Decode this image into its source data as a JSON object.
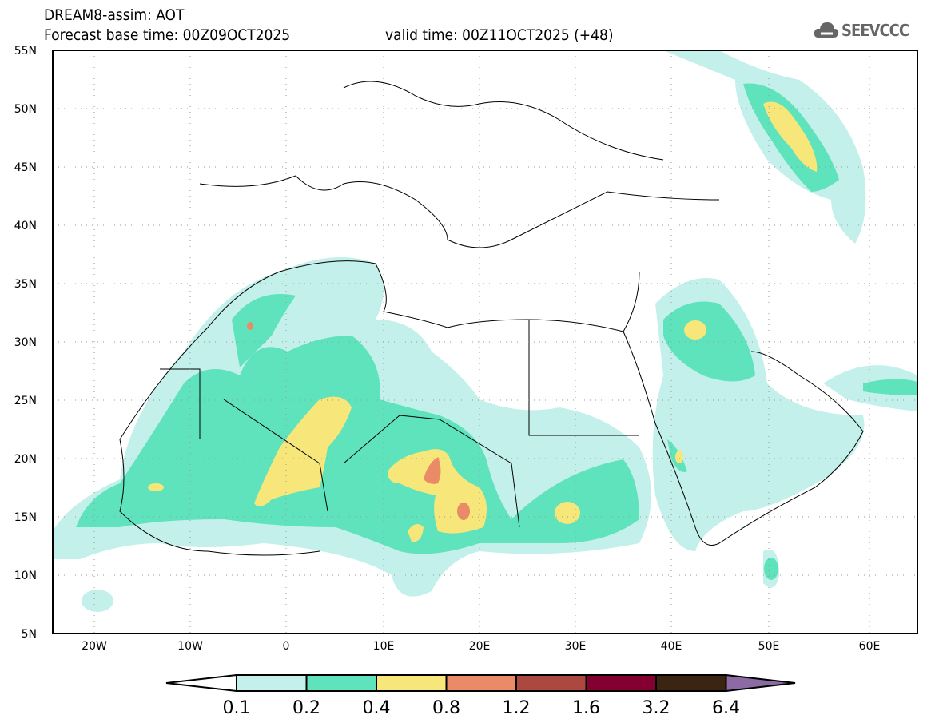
{
  "title": "DREAM8-assim: AOT",
  "base_time": "Forecast base time: 00Z09OCT2025",
  "valid_time": "valid time: 00Z11OCT2025 (+48)",
  "logo": "SEEVCCC",
  "lat_labels": [
    "55N",
    "50N",
    "45N",
    "40N",
    "35N",
    "30N",
    "25N",
    "20N",
    "15N",
    "10N",
    "5N"
  ],
  "lon_labels": [
    "20W",
    "10W",
    "0",
    "10E",
    "20E",
    "30E",
    "40E",
    "50E",
    "60E"
  ],
  "colorbar": {
    "levels": [
      "0.1",
      "0.2",
      "0.4",
      "0.8",
      "1.2",
      "1.6",
      "3.2",
      "6.4"
    ],
    "colors": [
      "#ffffff",
      "#c3f0ea",
      "#5ee3bd",
      "#f7e77a",
      "#ea8a67",
      "#ab4940",
      "#830031",
      "#3c2413",
      "#8c6aa3"
    ]
  }
}
